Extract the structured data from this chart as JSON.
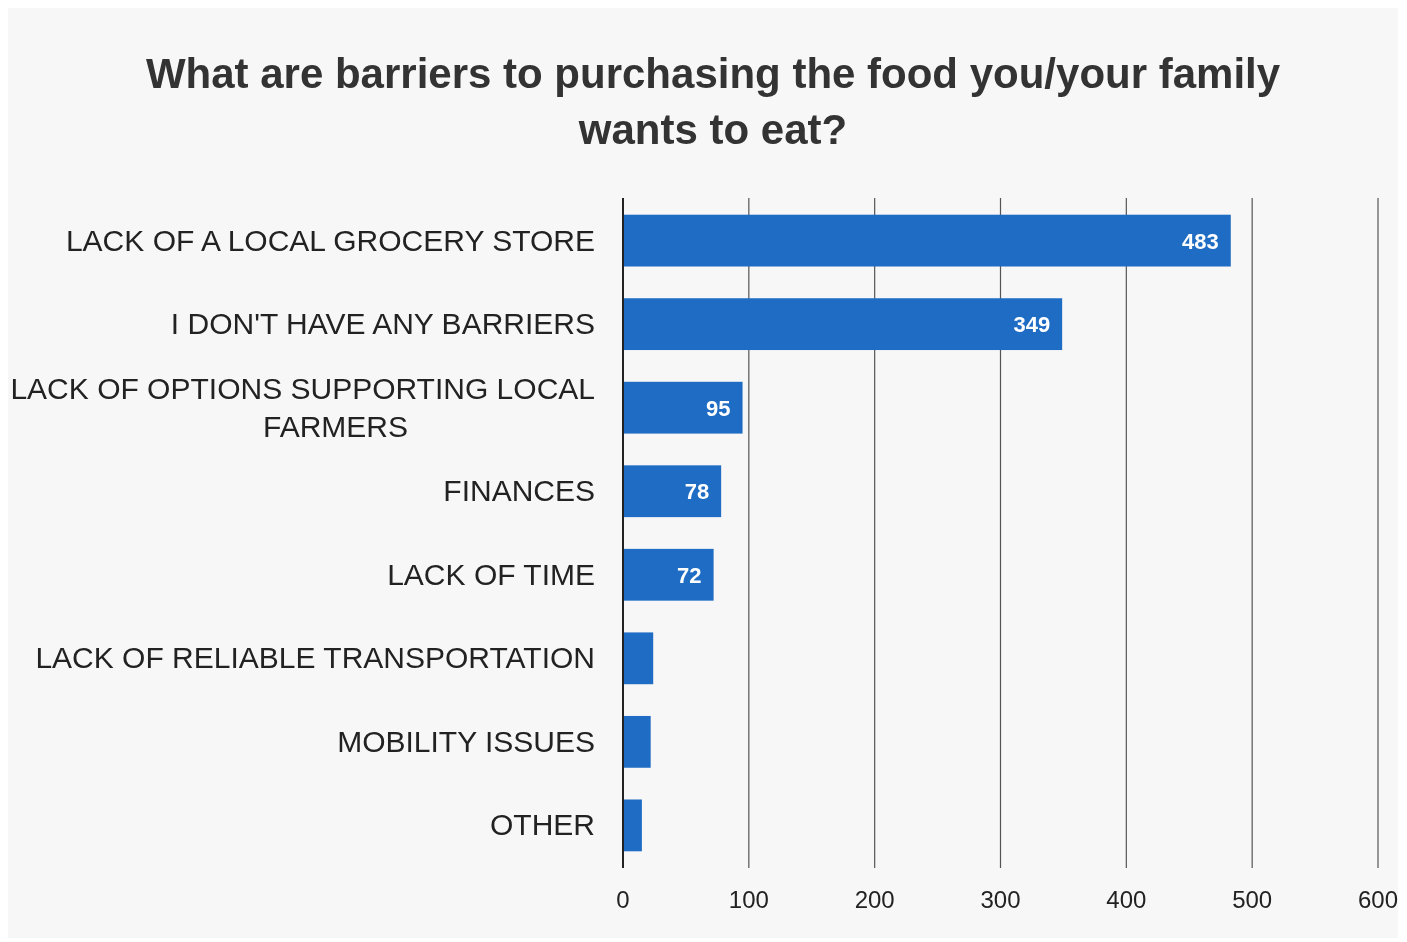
{
  "chart_data": {
    "type": "bar",
    "orientation": "horizontal",
    "title": "What are barriers to purchasing the food you/your family wants to eat?",
    "categories": [
      "LACK OF A LOCAL GROCERY STORE",
      "I DON'T HAVE ANY BARRIERS",
      "LACK OF OPTIONS SUPPORTING LOCAL FARMERS",
      "FINANCES",
      "LACK OF TIME",
      "LACK OF RELIABLE TRANSPORTATION",
      "MOBILITY ISSUES",
      "OTHER"
    ],
    "values": [
      483,
      349,
      95,
      78,
      72,
      24,
      22,
      15
    ],
    "value_labels": [
      "483",
      "349",
      "95",
      "78",
      "72",
      null,
      null,
      null
    ],
    "color": "#1f6cc4",
    "xlim": [
      0,
      600
    ],
    "xticks": [
      0,
      100,
      200,
      300,
      400,
      500,
      600
    ],
    "grid": "x"
  }
}
